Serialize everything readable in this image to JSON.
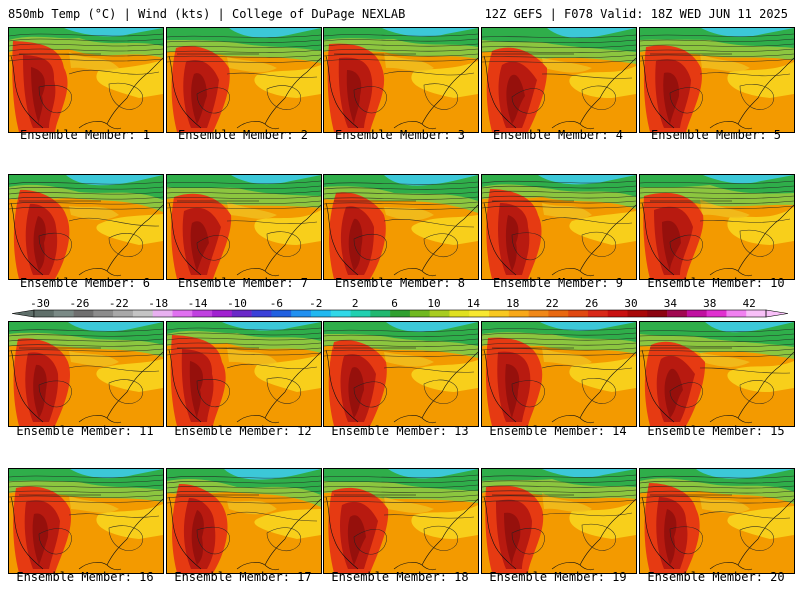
{
  "header": {
    "left": "850mb Temp (°C) | Wind (kts) | College of DuPage NEXLAB",
    "right": "12Z GEFS | F078 Valid: 18Z WED JUN 11 2025"
  },
  "panels": [
    {
      "label": "Ensemble Member: 1"
    },
    {
      "label": "Ensemble Member: 2"
    },
    {
      "label": "Ensemble Member: 3"
    },
    {
      "label": "Ensemble Member: 4"
    },
    {
      "label": "Ensemble Member: 5"
    },
    {
      "label": "Ensemble Member: 6"
    },
    {
      "label": "Ensemble Member: 7"
    },
    {
      "label": "Ensemble Member: 8"
    },
    {
      "label": "Ensemble Member: 9"
    },
    {
      "label": "Ensemble Member: 10"
    },
    {
      "label": "Ensemble Member: 11"
    },
    {
      "label": "Ensemble Member: 12"
    },
    {
      "label": "Ensemble Member: 13"
    },
    {
      "label": "Ensemble Member: 14"
    },
    {
      "label": "Ensemble Member: 15"
    },
    {
      "label": "Ensemble Member: 16"
    },
    {
      "label": "Ensemble Member: 17"
    },
    {
      "label": "Ensemble Member: 18"
    },
    {
      "label": "Ensemble Member: 19"
    },
    {
      "label": "Ensemble Member: 20"
    }
  ],
  "colorbar": {
    "tick_labels": [
      "-30",
      "-26",
      "-22",
      "-18",
      "-14",
      "-10",
      "-6",
      "-2",
      "2",
      "6",
      "10",
      "14",
      "18",
      "22",
      "26",
      "30",
      "34",
      "38",
      "42"
    ],
    "colors": [
      "#5f6f6a",
      "#7a8a86",
      "#6f6f6f",
      "#8c8c8c",
      "#a8a8a8",
      "#c4c4c4",
      "#e8b0f0",
      "#e070f0",
      "#c040e0",
      "#a020d0",
      "#6a28c8",
      "#3a40d8",
      "#2060e0",
      "#2090f0",
      "#20b8f0",
      "#30d8e8",
      "#20d0b0",
      "#20b870",
      "#30a030",
      "#70b820",
      "#a8cc20",
      "#e0e020",
      "#f8e830",
      "#f8c820",
      "#f8a818",
      "#f08818",
      "#e86810",
      "#e04810",
      "#d82818",
      "#c81010",
      "#a80808",
      "#8c0410",
      "#a00850",
      "#c010a0",
      "#e030d0",
      "#f080f0",
      "#f8c0f8"
    ]
  }
}
